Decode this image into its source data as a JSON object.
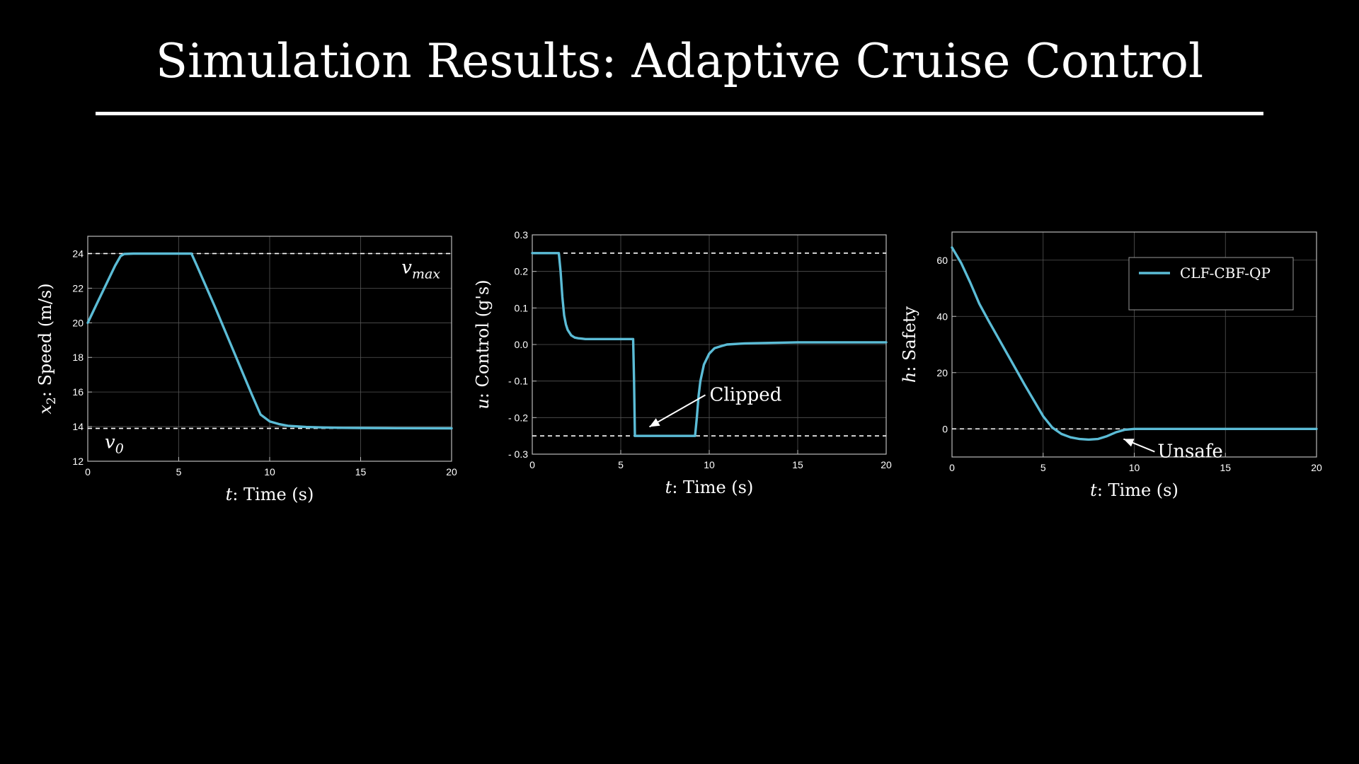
{
  "slide": {
    "title": "Simulation Results: Adaptive Cruise Control"
  },
  "colors": {
    "series": "#5bbcd6",
    "background": "#000000",
    "foreground": "#ffffff",
    "grid": "#555555"
  },
  "chart_data": [
    {
      "type": "line",
      "xlabel_var": "t",
      "xlabel": ": Time (s)",
      "ylabel_var": "x",
      "ylabel_sub": "2",
      "ylabel": ": Speed (m/s)",
      "xlim": [
        0,
        20
      ],
      "ylim": [
        12,
        25
      ],
      "xticks": [
        0,
        5,
        10,
        15,
        20
      ],
      "yticks": [
        12,
        14,
        16,
        18,
        20,
        22,
        24
      ],
      "grid": true,
      "hlines": [
        {
          "y": 24,
          "label_main": "v",
          "label_sub": "max",
          "label_place": "above-right"
        },
        {
          "y": 13.9,
          "label_main": "v",
          "label_sub": "0",
          "label_place": "below-left"
        }
      ],
      "series": [
        {
          "x": [
            0,
            0.5,
            1,
            1.5,
            1.8,
            2,
            2.5,
            3,
            4,
            5,
            5.7,
            6,
            7,
            8,
            9,
            9.5,
            10,
            10.5,
            11,
            12,
            13,
            14,
            15,
            17,
            20
          ],
          "y": [
            20,
            21.1,
            22.2,
            23.3,
            23.85,
            23.98,
            24,
            24,
            24,
            24,
            24,
            23.3,
            20.9,
            18.4,
            15.9,
            14.7,
            14.3,
            14.15,
            14.05,
            13.98,
            13.95,
            13.93,
            13.92,
            13.91,
            13.9
          ]
        }
      ]
    },
    {
      "type": "line",
      "xlabel_var": "t",
      "xlabel": ": Time (s)",
      "ylabel_var": "u",
      "ylabel": ": Control (g's)",
      "xlim": [
        0,
        20
      ],
      "ylim": [
        -0.3,
        0.3
      ],
      "xticks": [
        0,
        5,
        10,
        15,
        20
      ],
      "yticks": [
        -0.3,
        -0.2,
        -0.1,
        0.0,
        0.1,
        0.2,
        0.3
      ],
      "yticklabels": [
        "- 0.3",
        "- 0.2",
        "- 0.1",
        "0.0",
        "0.1",
        "0.2",
        "0.3"
      ],
      "grid": true,
      "hlines": [
        {
          "y": 0.25
        },
        {
          "y": -0.25
        }
      ],
      "annotation": {
        "text": "Clipped",
        "x": 6.3,
        "y": -0.235
      },
      "series": [
        {
          "x": [
            0,
            1.5,
            1.6,
            1.7,
            1.8,
            1.9,
            2.0,
            2.2,
            2.4,
            2.6,
            2.8,
            3.0,
            3.5,
            4,
            5,
            5.7,
            5.75,
            5.8,
            6.5,
            7,
            8,
            9,
            9.2,
            9.3,
            9.4,
            9.5,
            9.7,
            10,
            10.3,
            10.7,
            11,
            12,
            13,
            14,
            15,
            17,
            20
          ],
          "y": [
            0.25,
            0.25,
            0.2,
            0.13,
            0.08,
            0.055,
            0.04,
            0.025,
            0.019,
            0.017,
            0.016,
            0.015,
            0.015,
            0.015,
            0.015,
            0.015,
            -0.1,
            -0.25,
            -0.25,
            -0.25,
            -0.25,
            -0.25,
            -0.25,
            -0.2,
            -0.14,
            -0.1,
            -0.055,
            -0.025,
            -0.01,
            -0.004,
            0.0,
            0.003,
            0.004,
            0.005,
            0.006,
            0.006,
            0.006
          ]
        }
      ]
    },
    {
      "type": "line",
      "xlabel_var": "t",
      "xlabel": ": Time (s)",
      "ylabel_var": "h",
      "ylabel": ": Safety",
      "xlim": [
        0,
        20
      ],
      "ylim": [
        -10,
        70
      ],
      "xticks": [
        0,
        5,
        10,
        15,
        20
      ],
      "yticks": [
        0,
        20,
        40,
        60
      ],
      "grid": true,
      "hlines": [
        {
          "y": 0
        }
      ],
      "annotation": {
        "text": "Unsafe",
        "x": 9.1,
        "y": -3.6
      },
      "legend": {
        "entries": [
          "CLF-CBF-QP"
        ],
        "placement": "top-right"
      },
      "series": [
        {
          "name": "CLF-CBF-QP",
          "x": [
            0,
            0.5,
            1,
            1.5,
            2,
            3,
            4,
            5,
            5.5,
            6,
            6.5,
            7,
            7.5,
            8,
            8.5,
            9,
            9.5,
            10,
            11,
            12,
            15,
            20
          ],
          "y": [
            64.5,
            59,
            52,
            44.5,
            38.5,
            27,
            15.5,
            4.5,
            0.5,
            -1.8,
            -3.0,
            -3.6,
            -3.8,
            -3.6,
            -2.6,
            -1.2,
            -0.3,
            0,
            0,
            0,
            0,
            0
          ]
        }
      ]
    }
  ]
}
